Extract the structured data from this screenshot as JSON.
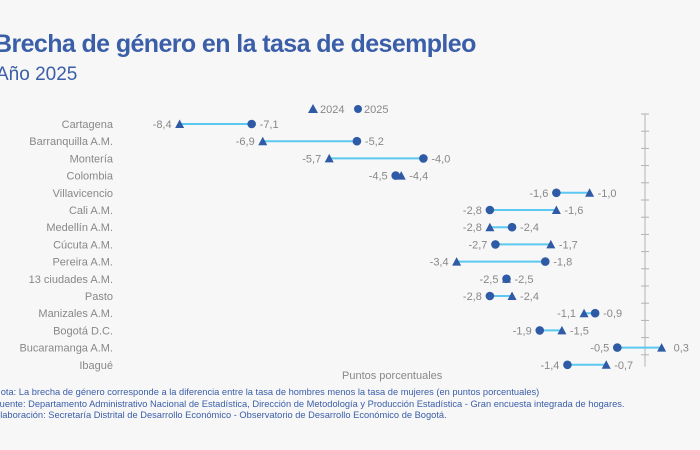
{
  "header": {
    "title": "Brecha de género en la tasa de desempleo",
    "subtitle": "Año 2025"
  },
  "chart_data": {
    "type": "dumbbell",
    "title": "Brecha de género en la tasa de desempleo",
    "subtitle": "Año 2025",
    "xlabel": "Puntos porcentuales",
    "ylabel": "",
    "xlim": [
      -9.4,
      0.6
    ],
    "legend": {
      "position": "top",
      "entries": [
        {
          "label": "2024",
          "marker": "triangle"
        },
        {
          "label": "2025",
          "marker": "circle"
        }
      ]
    },
    "categories": [
      "Cartagena",
      "Barranquilla A.M.",
      "Montería",
      "Colombia",
      "Villavicencio",
      "Cali A.M.",
      "Medellín A.M.",
      "Cúcuta A.M.",
      "Pereira A.M.",
      "13 ciudades A.M.",
      "Pasto",
      "Manizales A.M.",
      "Bogotá D.C.",
      "Bucaramanga A.M.",
      "Ibagué"
    ],
    "series": [
      {
        "name": "2024",
        "values": [
          -8.4,
          -6.9,
          -5.7,
          -4.4,
          -1.0,
          -1.6,
          -2.8,
          -1.7,
          -3.4,
          -2.5,
          -2.4,
          -1.1,
          -1.5,
          0.3,
          -0.7
        ]
      },
      {
        "name": "2025",
        "values": [
          -7.1,
          -5.2,
          -4.0,
          -4.5,
          -1.6,
          -2.8,
          -2.4,
          -2.7,
          -1.8,
          -2.5,
          -2.8,
          -0.9,
          -1.9,
          -0.5,
          -1.4
        ]
      }
    ],
    "value_labels": {
      "2024": [
        "-8,4",
        "-6,9",
        "-5,7",
        "-4,4",
        "-1,0",
        "-1,6",
        "-2,8",
        "-1,7",
        "-3,4",
        "-2,5",
        "-2,4",
        "-1,1",
        "-1,5",
        "0,3",
        "-0,7"
      ],
      "2025": [
        "-7,1",
        "-5,2",
        "-4,0",
        "-4,5",
        "-1,6",
        "-2,8",
        "-2,4",
        "-2,7",
        "-1,8",
        "-2,5",
        "-2,8",
        "-0,9",
        "-1,9",
        "-0,5",
        "-1,4"
      ]
    },
    "colors": {
      "marker": "#2e5aa6",
      "connector": "#5bc8f0",
      "axis": "#b3b3b3",
      "label": "#888888",
      "title": "#3a5ea8"
    },
    "zero_axis": true
  },
  "footer": {
    "note": "Nota: La brecha de género corresponde a la diferencia entre la tasa de hombres menos la tasa de mujeres (en puntos porcentuales)",
    "source": "Fuente: Departamento Administrativo Nacional de Estadística, Dirección de Metodología y Producción Estadística - Gran encuesta integrada de hogares.",
    "elaboration": "Elaboración: Secretaría Distrital de Desarrollo Económico - Observatorio de Desarrollo Económico de Bogotá."
  }
}
